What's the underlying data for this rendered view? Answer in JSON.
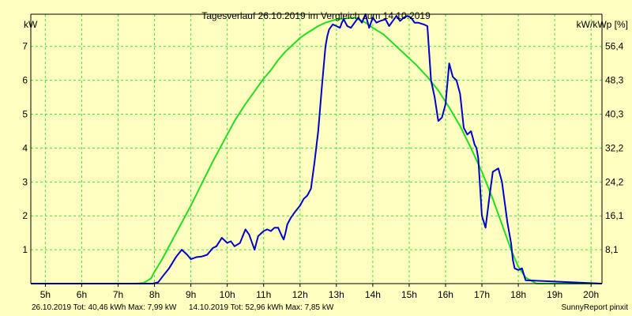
{
  "chart_data": {
    "type": "line",
    "title": "Tagesverlauf 26.10.2019 im Vergleich zum 14.10.2019",
    "ylabel_left": "kW",
    "ylabel_right": "kW/kWp [%]",
    "footer_credit": "SunnyReport pinxit",
    "xlim": [
      4.6,
      20.3
    ],
    "ylim": [
      0,
      7.95
    ],
    "grid": true,
    "x_ticks": [
      {
        "v": 5,
        "label": "5h"
      },
      {
        "v": 6,
        "label": "6h"
      },
      {
        "v": 7,
        "label": "7h"
      },
      {
        "v": 8,
        "label": "8h"
      },
      {
        "v": 9,
        "label": "9h"
      },
      {
        "v": 10,
        "label": "10h"
      },
      {
        "v": 11,
        "label": "11h"
      },
      {
        "v": 12,
        "label": "12h"
      },
      {
        "v": 13,
        "label": "13h"
      },
      {
        "v": 14,
        "label": "14h"
      },
      {
        "v": 15,
        "label": "15h"
      },
      {
        "v": 16,
        "label": "16h"
      },
      {
        "v": 17,
        "label": "17h"
      },
      {
        "v": 18,
        "label": "18h"
      },
      {
        "v": 19,
        "label": "19h"
      },
      {
        "v": 20,
        "label": "20h"
      }
    ],
    "y_ticks_left": [
      {
        "v": 1,
        "label": "1"
      },
      {
        "v": 2,
        "label": "2"
      },
      {
        "v": 3,
        "label": "3"
      },
      {
        "v": 4,
        "label": "4"
      },
      {
        "v": 5,
        "label": "5"
      },
      {
        "v": 6,
        "label": "6"
      },
      {
        "v": 7,
        "label": "7"
      }
    ],
    "y_ticks_right": [
      {
        "v": 1,
        "label": "8,1"
      },
      {
        "v": 2,
        "label": "16,1"
      },
      {
        "v": 3,
        "label": "24,2"
      },
      {
        "v": 4,
        "label": "32,2"
      },
      {
        "v": 5,
        "label": "40,3"
      },
      {
        "v": 6,
        "label": "48,3"
      },
      {
        "v": 7,
        "label": "56,4"
      }
    ],
    "colors": {
      "background": "#ffffc0",
      "grid": "#44dd44",
      "axis": "#000000",
      "series_1": "#0000cc",
      "series_2": "#22dd22"
    },
    "series": [
      {
        "name": "26.10.2019",
        "summary": "26.10.2019 Tot: 40,46 kWh Max: 7,99 kW",
        "color": "#0000cc",
        "x": [
          4.6,
          7.95,
          8.1,
          8.25,
          8.4,
          8.6,
          8.75,
          8.9,
          9.0,
          9.15,
          9.3,
          9.45,
          9.6,
          9.7,
          9.85,
          10.0,
          10.1,
          10.2,
          10.35,
          10.5,
          10.6,
          10.75,
          10.85,
          11.0,
          11.1,
          11.2,
          11.3,
          11.4,
          11.5,
          11.55,
          11.6,
          11.65,
          11.75,
          11.85,
          12.0,
          12.1,
          12.2,
          12.3,
          12.4,
          12.5,
          12.6,
          12.7,
          12.75,
          12.8,
          12.9,
          13.0,
          13.1,
          13.15,
          13.2,
          13.3,
          13.4,
          13.5,
          13.6,
          13.7,
          13.8,
          13.9,
          14.0,
          14.1,
          14.2,
          14.35,
          14.45,
          14.55,
          14.65,
          14.75,
          14.85,
          14.95,
          15.05,
          15.15,
          15.25,
          15.4,
          15.5,
          15.6,
          15.7,
          15.8,
          15.9,
          16.0,
          16.1,
          16.2,
          16.3,
          16.4,
          16.5,
          16.6,
          16.7,
          16.8,
          16.85,
          16.9,
          17.0,
          17.1,
          17.2,
          17.3,
          17.45,
          17.55,
          17.7,
          17.8,
          17.85,
          17.9,
          18.0,
          18.1,
          18.2,
          20.3
        ],
        "y": [
          0,
          0,
          0.04,
          0.25,
          0.45,
          0.8,
          1.0,
          0.85,
          0.72,
          0.78,
          0.8,
          0.85,
          1.05,
          1.1,
          1.35,
          1.2,
          1.25,
          1.1,
          1.2,
          1.6,
          1.45,
          1.0,
          1.4,
          1.55,
          1.6,
          1.55,
          1.65,
          1.65,
          1.4,
          1.3,
          1.5,
          1.75,
          1.95,
          2.1,
          2.3,
          2.5,
          2.6,
          2.8,
          3.6,
          4.5,
          5.8,
          7.0,
          7.3,
          7.5,
          7.65,
          7.6,
          7.55,
          7.7,
          7.8,
          7.6,
          7.55,
          7.7,
          7.85,
          7.7,
          7.95,
          7.55,
          7.85,
          7.7,
          7.75,
          7.8,
          7.6,
          7.75,
          7.9,
          7.75,
          7.85,
          7.9,
          7.85,
          7.7,
          7.7,
          7.65,
          7.6,
          6.0,
          5.5,
          4.8,
          4.9,
          5.3,
          6.5,
          6.1,
          6.0,
          5.6,
          4.6,
          4.4,
          4.5,
          4.1,
          4.0,
          3.7,
          2.0,
          1.65,
          2.5,
          3.3,
          3.4,
          3.0,
          1.8,
          1.2,
          0.7,
          0.45,
          0.4,
          0.45,
          0.1,
          0
        ]
      },
      {
        "name": "14.10.2019",
        "summary": "14.10.2019 Tot: 52,96 kWh Max: 7,85 kW",
        "color": "#22dd22",
        "x": [
          4.6,
          7.1,
          7.5,
          7.7,
          7.9,
          8.0,
          8.2,
          8.5,
          8.8,
          9.0,
          9.3,
          9.6,
          9.9,
          10.2,
          10.5,
          10.8,
          11.0,
          11.2,
          11.4,
          11.6,
          11.8,
          12.0,
          12.2,
          12.5,
          12.7,
          13.0,
          13.2,
          13.5,
          13.8,
          14.0,
          14.3,
          14.6,
          14.9,
          15.2,
          15.5,
          15.8,
          16.1,
          16.4,
          16.7,
          17.0,
          17.3,
          17.6,
          17.8,
          18.0,
          18.2,
          18.5,
          20.3
        ],
        "y": [
          0,
          0,
          0,
          0.02,
          0.15,
          0.35,
          0.7,
          1.3,
          1.9,
          2.3,
          2.95,
          3.6,
          4.2,
          4.8,
          5.3,
          5.75,
          6.05,
          6.3,
          6.6,
          6.85,
          7.05,
          7.25,
          7.4,
          7.6,
          7.7,
          7.8,
          7.82,
          7.85,
          7.7,
          7.55,
          7.35,
          7.05,
          6.75,
          6.45,
          6.1,
          5.7,
          5.2,
          4.65,
          4.0,
          3.3,
          2.5,
          1.6,
          1.0,
          0.5,
          0.18,
          0,
          0
        ]
      }
    ]
  }
}
